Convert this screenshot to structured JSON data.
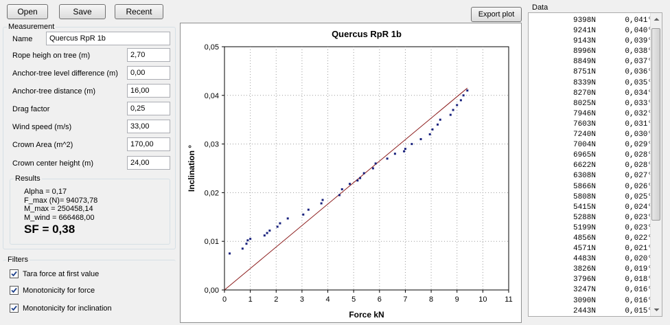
{
  "toolbar": {
    "open_label": "Open",
    "save_label": "Save",
    "recent_label": "Recent",
    "export_label": "Export plot"
  },
  "measurement": {
    "group_title": "Measurement",
    "name_label": "Name",
    "name_value": "Quercus RpR 1b",
    "fields": [
      {
        "label": "Rope heigh on tree (m)",
        "value": "2,70"
      },
      {
        "label": "Anchor-tree level difference (m)",
        "value": "0,00"
      },
      {
        "label": "Anchor-tree distance (m)",
        "value": "16,00"
      },
      {
        "label": "Drag factor",
        "value": "0,25"
      },
      {
        "label": "Wind speed (m/s)",
        "value": "33,00"
      },
      {
        "label": "Crown Area (m^2)",
        "value": "170,00"
      },
      {
        "label": "Crown center height (m)",
        "value": "24,00"
      }
    ]
  },
  "results": {
    "group_title": "Results",
    "alpha": "Alpha = 0,17",
    "f_max": "F_max (N)= 94073,78",
    "m_max": "M_max = 250458,14",
    "m_wind": "M_wind = 666468,00",
    "sf": "SF = 0,38"
  },
  "filters": {
    "group_title": "Filters",
    "items": [
      {
        "label": "Tara force at first value",
        "checked": true
      },
      {
        "label": "Monotonicity for force",
        "checked": true
      },
      {
        "label": "Monotonicity for inclination",
        "checked": true
      }
    ]
  },
  "data_panel": {
    "title": "Data",
    "rows": [
      {
        "force": "9398N",
        "angle": "0,041°"
      },
      {
        "force": "9241N",
        "angle": "0,040°"
      },
      {
        "force": "9143N",
        "angle": "0,039°"
      },
      {
        "force": "8996N",
        "angle": "0,038°"
      },
      {
        "force": "8849N",
        "angle": "0,037°"
      },
      {
        "force": "8751N",
        "angle": "0,036°"
      },
      {
        "force": "8339N",
        "angle": "0,035°"
      },
      {
        "force": "8270N",
        "angle": "0,034°"
      },
      {
        "force": "8025N",
        "angle": "0,033°"
      },
      {
        "force": "7946N",
        "angle": "0,032°"
      },
      {
        "force": "7603N",
        "angle": "0,031°"
      },
      {
        "force": "7240N",
        "angle": "0,030°"
      },
      {
        "force": "7004N",
        "angle": "0,029°"
      },
      {
        "force": "6965N",
        "angle": "0,028°"
      },
      {
        "force": "6622N",
        "angle": "0,028°"
      },
      {
        "force": "6308N",
        "angle": "0,027°"
      },
      {
        "force": "5866N",
        "angle": "0,026°"
      },
      {
        "force": "5808N",
        "angle": "0,025°"
      },
      {
        "force": "5415N",
        "angle": "0,024°"
      },
      {
        "force": "5288N",
        "angle": "0,023°"
      },
      {
        "force": "5199N",
        "angle": "0,023°"
      },
      {
        "force": "4856N",
        "angle": "0,022°"
      },
      {
        "force": "4571N",
        "angle": "0,021°"
      },
      {
        "force": "4483N",
        "angle": "0,020°"
      },
      {
        "force": "3826N",
        "angle": "0,019°"
      },
      {
        "force": "3796N",
        "angle": "0,018°"
      },
      {
        "force": "3247N",
        "angle": "0,016°"
      },
      {
        "force": "3090N",
        "angle": "0,016°"
      },
      {
        "force": "2443N",
        "angle": "0,015°"
      }
    ]
  },
  "chart_data": {
    "type": "scatter",
    "title": "Quercus RpR 1b",
    "xlabel": "Force  kN",
    "ylabel": "Inclination  °",
    "xlim": [
      0,
      11
    ],
    "ylim": [
      0,
      0.05
    ],
    "xticks": [
      "0",
      "1",
      "2",
      "3",
      "4",
      "5",
      "6",
      "7",
      "8",
      "9",
      "10",
      "11"
    ],
    "yticks": [
      "0,00",
      "0,01",
      "0,02",
      "0,03",
      "0,04",
      "0,05"
    ],
    "grid": true,
    "point_color": "#1a237e",
    "line_color": "#8b1a1a",
    "series": [
      {
        "type": "scatter",
        "points": [
          [
            0.2,
            0.0075
          ],
          [
            0.7,
            0.0085
          ],
          [
            0.85,
            0.0095
          ],
          [
            0.9,
            0.0102
          ],
          [
            1.0,
            0.0105
          ],
          [
            1.55,
            0.0112
          ],
          [
            1.65,
            0.0117
          ],
          [
            1.75,
            0.0122
          ],
          [
            2.05,
            0.013
          ],
          [
            2.15,
            0.0137
          ],
          [
            2.45,
            0.0147
          ],
          [
            3.05,
            0.0155
          ],
          [
            3.25,
            0.0165
          ],
          [
            3.75,
            0.0178
          ],
          [
            3.8,
            0.0185
          ],
          [
            4.45,
            0.0195
          ],
          [
            4.55,
            0.0207
          ],
          [
            4.85,
            0.0218
          ],
          [
            5.15,
            0.0225
          ],
          [
            5.25,
            0.023
          ],
          [
            5.4,
            0.024
          ],
          [
            5.75,
            0.025
          ],
          [
            5.85,
            0.026
          ],
          [
            6.3,
            0.027
          ],
          [
            6.6,
            0.028
          ],
          [
            6.95,
            0.0285
          ],
          [
            7.0,
            0.029
          ],
          [
            7.25,
            0.03
          ],
          [
            7.6,
            0.031
          ],
          [
            7.95,
            0.032
          ],
          [
            8.05,
            0.033
          ],
          [
            8.25,
            0.034
          ],
          [
            8.35,
            0.035
          ],
          [
            8.75,
            0.036
          ],
          [
            8.85,
            0.037
          ],
          [
            9.0,
            0.038
          ],
          [
            9.15,
            0.039
          ],
          [
            9.25,
            0.04
          ],
          [
            9.4,
            0.041
          ]
        ]
      },
      {
        "type": "line",
        "points": [
          [
            0,
            0
          ],
          [
            9.4,
            0.0415
          ]
        ]
      }
    ]
  }
}
